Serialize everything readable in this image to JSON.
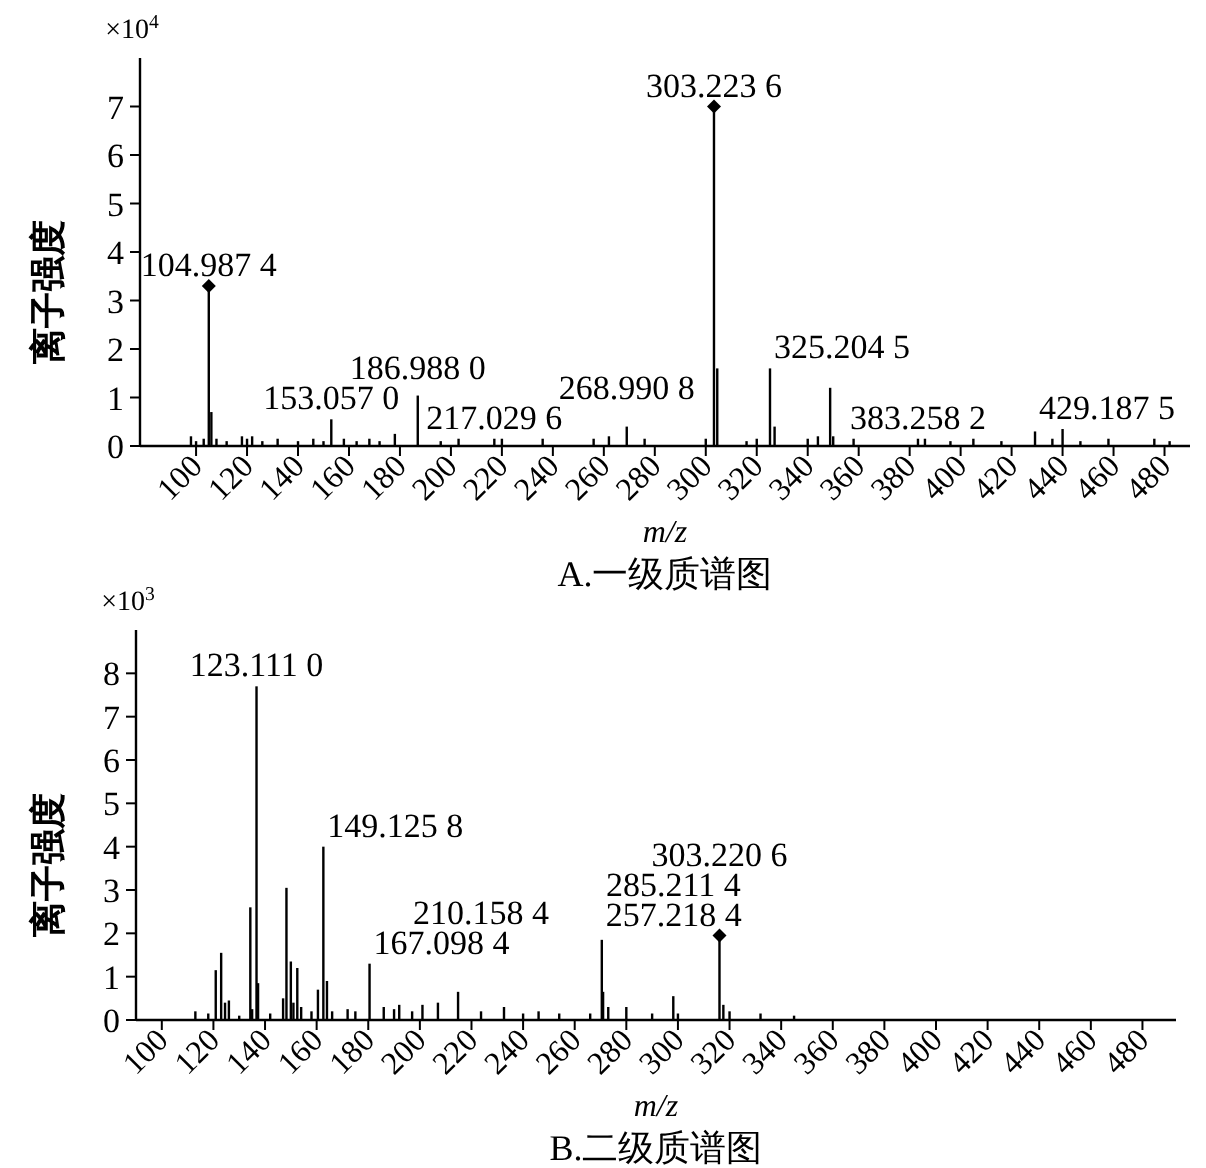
{
  "chart_data": [
    {
      "type": "bar",
      "title": "A.一级质谱图",
      "xlabel": "m/z",
      "ylabel": "离子强度",
      "xlim": [
        78,
        490
      ],
      "xticks": [
        100,
        120,
        140,
        160,
        180,
        200,
        220,
        240,
        260,
        280,
        300,
        320,
        340,
        360,
        380,
        400,
        420,
        440,
        460,
        480
      ],
      "ylim": [
        0,
        8
      ],
      "yticks": [
        0,
        1,
        2,
        3,
        4,
        5,
        6,
        7
      ],
      "annotations": [
        "×10$^{4}$",
        {
          "text": "104.987 4",
          "x": 104.99,
          "y": 3.3
        },
        {
          "text": "153.057 0",
          "x": 153.06,
          "y": 0.55
        },
        {
          "text": "186.988 0",
          "x": 186.99,
          "y": 1.04
        },
        {
          "text": "217.029 6",
          "x": 217.03,
          "y": 0.15
        },
        {
          "text": "268.990 8",
          "x": 268.99,
          "y": 0.4
        },
        {
          "text": "303.223 6",
          "x": 303.22,
          "y": 7.0
        },
        {
          "text": "325.204 5",
          "x": 325.2,
          "y": 1.6
        },
        {
          "text": "383.258 2",
          "x": 383.26,
          "y": 0.15
        },
        {
          "text": "429.187 5",
          "x": 429.19,
          "y": 0.3
        }
      ],
      "series": [
        {
          "color": "#000000",
          "x": [
            98,
            100,
            103,
            104.99,
            106,
            108,
            112,
            118,
            120,
            122,
            126,
            132,
            140,
            146,
            150,
            153.06,
            158,
            163,
            168,
            172,
            178,
            186.99,
            196,
            203,
            217.03,
            220,
            236,
            256,
            262,
            268.99,
            276,
            300,
            303.22,
            304.5,
            316,
            320,
            325.2,
            327,
            340,
            344,
            348.8,
            350,
            358,
            383.26,
            386,
            396,
            405,
            416,
            429.19,
            436,
            440,
            447,
            458,
            476,
            482
          ],
          "values": [
            0.2,
            0.1,
            0.15,
            3.3,
            0.7,
            0.15,
            0.1,
            0.2,
            0.15,
            0.2,
            0.1,
            0.15,
            0.1,
            0.15,
            0.1,
            0.55,
            0.15,
            0.1,
            0.15,
            0.1,
            0.25,
            1.04,
            0.1,
            0.15,
            0.15,
            0.15,
            0.15,
            0.15,
            0.2,
            0.4,
            0.15,
            0.15,
            7.0,
            1.6,
            0.1,
            0.15,
            1.6,
            0.4,
            0.15,
            0.2,
            1.2,
            0.2,
            0.15,
            0.15,
            0.15,
            0.1,
            0.15,
            0.1,
            0.3,
            0.15,
            0.35,
            0.1,
            0.15,
            0.15,
            0.1
          ]
        },
        {
          "type": "scatter",
          "marker": "diamond",
          "color": "#000000",
          "x": [
            104.99,
            303.22
          ],
          "values": [
            3.3,
            7.0
          ]
        }
      ]
    },
    {
      "type": "bar",
      "title": "B.二级质谱图",
      "xlabel": "m/z",
      "ylabel": "离子强度",
      "xlim": [
        90,
        493
      ],
      "xticks": [
        100,
        120,
        140,
        160,
        180,
        200,
        220,
        240,
        260,
        280,
        300,
        320,
        340,
        360,
        380,
        400,
        420,
        440,
        460,
        480
      ],
      "ylim": [
        0,
        9
      ],
      "yticks": [
        0,
        1,
        2,
        3,
        4,
        5,
        6,
        7,
        8
      ],
      "annotations": [
        "×10$^{3}$",
        {
          "text": "123.111 0",
          "x": 136.7,
          "y": 7.7
        },
        {
          "text": "149.125 8",
          "x": 162.6,
          "y": 4.0
        },
        {
          "text": "167.098 4",
          "x": 180.5,
          "y": 1.3
        },
        {
          "text": "210.158 4",
          "x": 223.7,
          "y": 0.2
        },
        {
          "text": "257.218 4",
          "x": 270.5,
          "y": 1.85
        },
        {
          "text": "285.211 4",
          "x": 298.2,
          "y": 0.55
        },
        {
          "text": "303.220 6",
          "x": 316.1,
          "y": 1.95
        }
      ],
      "series": [
        {
          "color": "#000000",
          "x": [
            113,
            118,
            120.9,
            123,
            124.5,
            126,
            130,
            134.3,
            135,
            136.7,
            137.3,
            142,
            147,
            148.3,
            150,
            151,
            152.5,
            154,
            158,
            160.5,
            162.6,
            164,
            166,
            172,
            175,
            180.5,
            186,
            190,
            192,
            197,
            201,
            207,
            214.8,
            223.7,
            232.6,
            240,
            246,
            254,
            266,
            270.5,
            271,
            273,
            280,
            290,
            298.2,
            300,
            316.1,
            317.6,
            320,
            332,
            345
          ],
          "values": [
            0.2,
            0.15,
            1.15,
            1.55,
            0.4,
            0.45,
            0.1,
            2.6,
            0.25,
            7.7,
            0.85,
            0.15,
            0.5,
            3.05,
            1.35,
            0.4,
            1.2,
            0.3,
            0.2,
            0.7,
            4.0,
            0.9,
            0.2,
            0.25,
            0.2,
            1.3,
            0.3,
            0.25,
            0.35,
            0.2,
            0.35,
            0.4,
            0.65,
            0.2,
            0.3,
            0.15,
            0.2,
            0.15,
            0.15,
            1.85,
            0.65,
            0.3,
            0.3,
            0.15,
            0.55,
            0.15,
            1.95,
            0.35,
            0.2,
            0.15,
            0.1
          ]
        },
        {
          "type": "scatter",
          "marker": "diamond",
          "color": "#000000",
          "x": [
            316.1
          ],
          "values": [
            1.95
          ]
        }
      ]
    }
  ]
}
